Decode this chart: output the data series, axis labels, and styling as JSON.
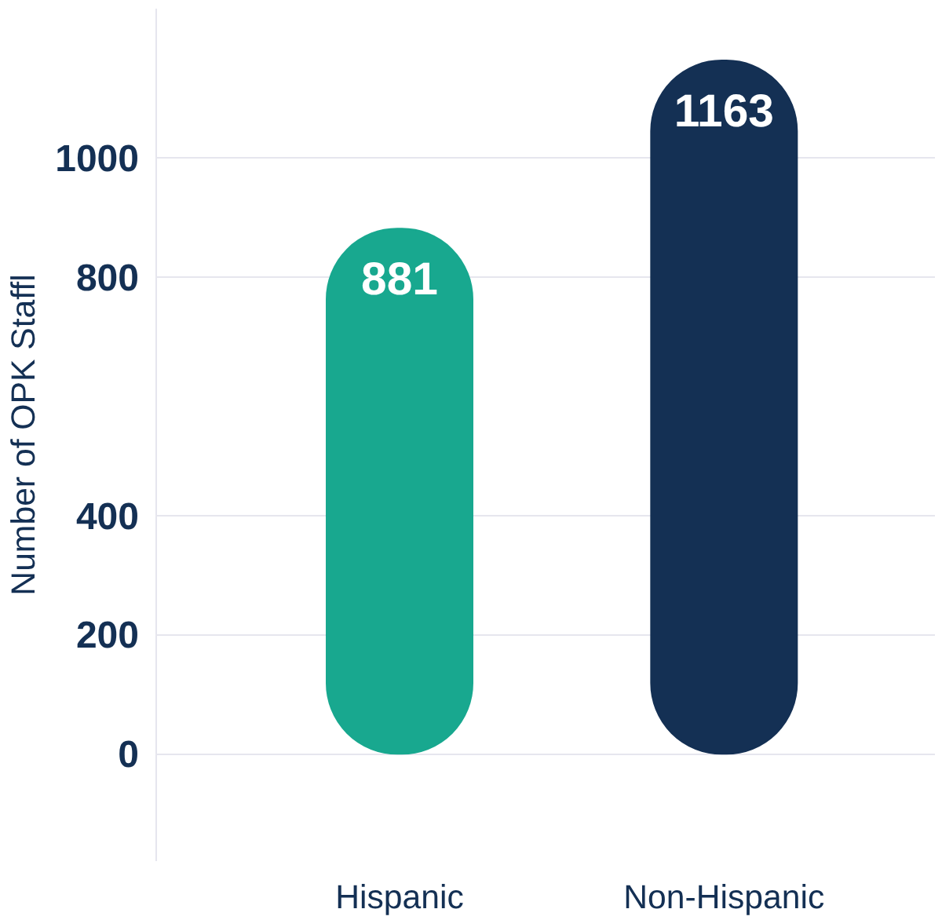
{
  "chart_data": {
    "type": "bar",
    "ylabel": "Number of OPK Staffl",
    "categories": [
      "Hispanic",
      "Non-Hispanic"
    ],
    "values": [
      881,
      1163
    ],
    "colors": [
      "#18a88f",
      "#143054"
    ],
    "ylim": [
      -180,
      1250
    ],
    "yticks": [
      0,
      200,
      400,
      800,
      1000
    ],
    "grid": "y",
    "data_labels": true
  }
}
